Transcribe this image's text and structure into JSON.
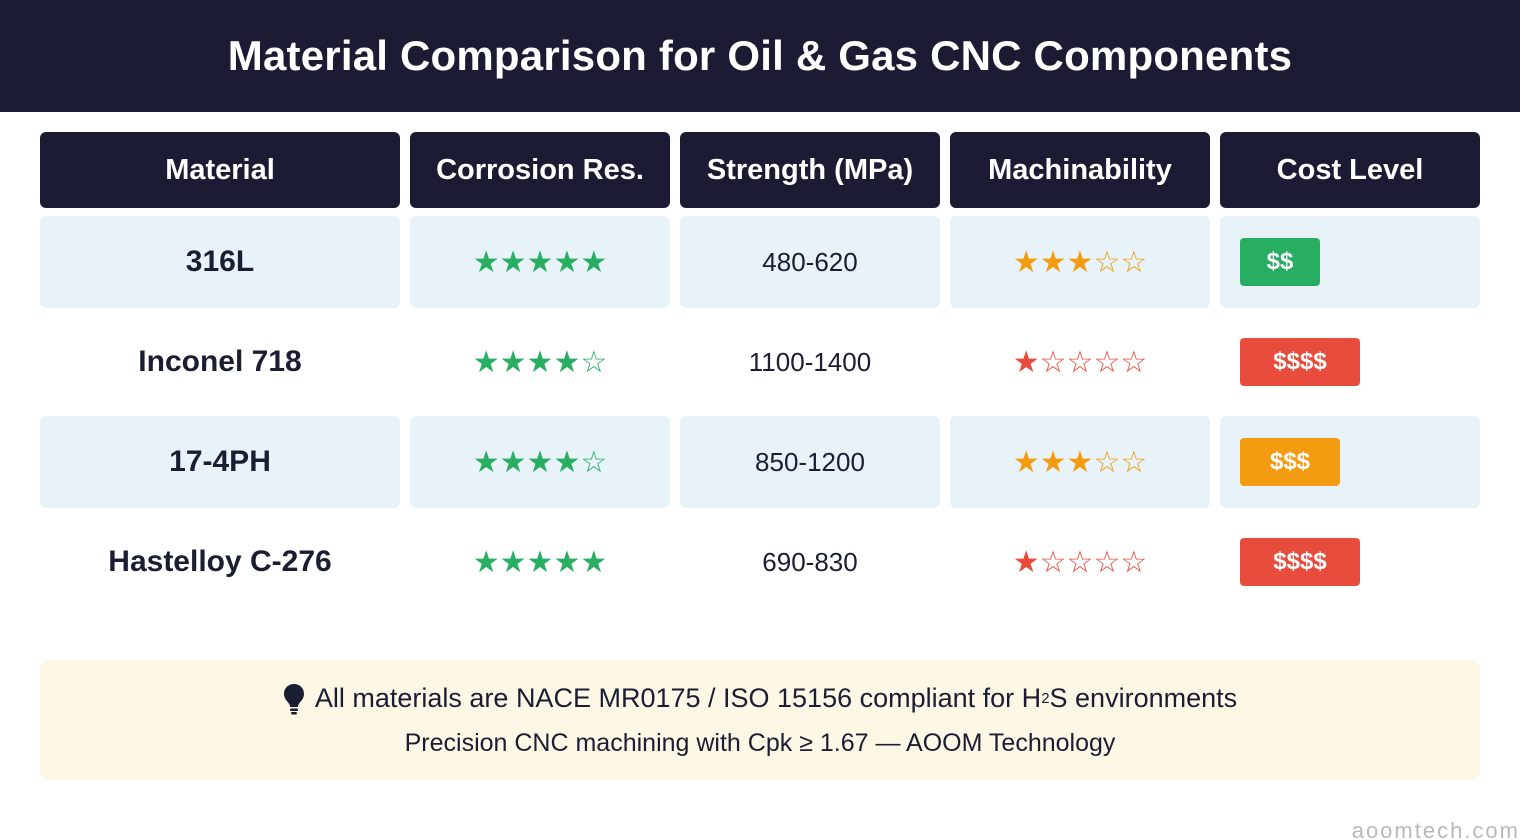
{
  "title": "Material Comparison for Oil & Gas CNC Components",
  "columns": [
    "Material",
    "Corrosion Res.",
    "Strength (MPa)",
    "Machinability",
    "Cost Level"
  ],
  "colors": {
    "header_bg": "#1b1c33",
    "row_shade": "#e7f3f8",
    "star_green": "#27ae60",
    "star_orange": "#f39c12",
    "star_red": "#e74c3c",
    "cost_green": "#27ae60",
    "cost_orange": "#f39c12",
    "cost_red": "#e74c3c",
    "note_bg": "#fdf8e6"
  },
  "rows": [
    {
      "material": "316L",
      "corrosion": 5,
      "strength": "480-620",
      "machinability": 3,
      "machinability_color": "orange",
      "cost": "$$",
      "cost_color": "green"
    },
    {
      "material": "Inconel 718",
      "corrosion": 4,
      "strength": "1100-1400",
      "machinability": 1,
      "machinability_color": "red",
      "cost": "$$$$",
      "cost_color": "red"
    },
    {
      "material": "17-4PH",
      "corrosion": 4,
      "strength": "850-1200",
      "machinability": 3,
      "machinability_color": "orange",
      "cost": "$$$",
      "cost_color": "orange"
    },
    {
      "material": "Hastelloy C-276",
      "corrosion": 5,
      "strength": "690-830",
      "machinability": 1,
      "machinability_color": "red",
      "cost": "$$$$",
      "cost_color": "red"
    }
  ],
  "note": {
    "icon": "lightbulb-icon",
    "line1_pre": "All materials are NACE MR0175 / ISO 15156 compliant for H",
    "line1_sub": "2",
    "line1_post": "S environments",
    "line2": "Precision CNC machining with Cpk ≥ 1.67 — AOOM Technology"
  },
  "watermark": "aoomtech.com"
}
